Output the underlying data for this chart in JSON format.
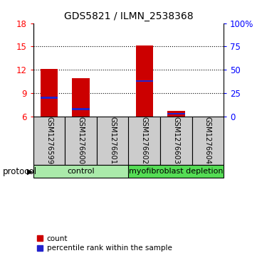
{
  "title": "GDS5821 / ILMN_2538368",
  "samples": [
    "GSM1276599",
    "GSM1276600",
    "GSM1276601",
    "GSM1276602",
    "GSM1276603",
    "GSM1276604"
  ],
  "bar_values": [
    12.1,
    10.9,
    6.0,
    15.1,
    6.7,
    6.0
  ],
  "percentile_values": [
    20.0,
    8.0,
    0.0,
    38.0,
    3.0,
    0.0
  ],
  "y_min": 6,
  "y_max": 18,
  "y_ticks": [
    6,
    9,
    12,
    15,
    18
  ],
  "y2_ticks": [
    0,
    25,
    50,
    75,
    100
  ],
  "y2_labels": [
    "0",
    "25",
    "50",
    "75",
    "100%"
  ],
  "bar_color": "#cc0000",
  "percentile_color": "#2222cc",
  "groups": [
    {
      "label": "control",
      "indices": [
        0,
        1,
        2
      ],
      "color": "#aaeaaa"
    },
    {
      "label": "myofibroblast depletion",
      "indices": [
        3,
        4,
        5
      ],
      "color": "#55dd55"
    }
  ],
  "protocol_label": "protocol",
  "legend_items": [
    "count",
    "percentile rank within the sample"
  ],
  "bar_color_legend": "#cc0000",
  "percentile_color_legend": "#2222cc",
  "background_color": "#ffffff",
  "sample_box_color": "#cccccc",
  "title_fontsize": 10,
  "bar_width": 0.55
}
